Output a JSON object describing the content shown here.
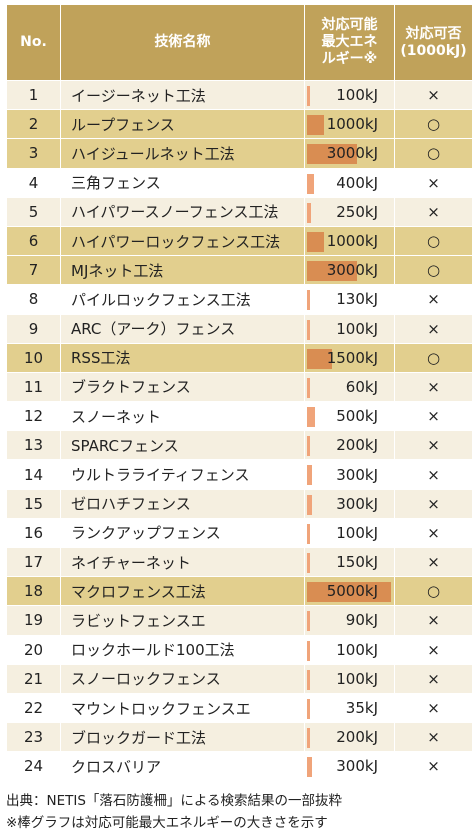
{
  "header": {
    "no": "No.",
    "name": "技術名称",
    "energy_lines": [
      "対応可能",
      "最大エネ",
      "ルギー※"
    ],
    "compat_lines": [
      "対応可否",
      "(1000kJ)"
    ]
  },
  "max_energy_kj": 5000,
  "colors": {
    "header": "#c0a25a",
    "row_alt": "#f5efe0",
    "row_highlight": "#e2cf8e",
    "bar": "#f0a47a"
  },
  "rows": [
    {
      "no": "1",
      "name": "イージーネット工法",
      "energy": "100kJ",
      "kj": 100,
      "compat": "×"
    },
    {
      "no": "2",
      "name": "ループフェンス",
      "energy": "1000kJ",
      "kj": 1000,
      "compat": "○"
    },
    {
      "no": "3",
      "name": "ハイジュールネット工法",
      "energy": "3000kJ",
      "kj": 3000,
      "compat": "○"
    },
    {
      "no": "4",
      "name": "三角フェンス",
      "energy": "400kJ",
      "kj": 400,
      "compat": "×"
    },
    {
      "no": "5",
      "name": "ハイパワースノーフェンス工法",
      "energy": "250kJ",
      "kj": 250,
      "compat": "×"
    },
    {
      "no": "6",
      "name": "ハイパワーロックフェンス工法",
      "energy": "1000kJ",
      "kj": 1000,
      "compat": "○"
    },
    {
      "no": "7",
      "name": "MJネット工法",
      "energy": "3000kJ",
      "kj": 3000,
      "compat": "○"
    },
    {
      "no": "8",
      "name": "パイルロックフェンス工法",
      "energy": "130kJ",
      "kj": 130,
      "compat": "×"
    },
    {
      "no": "9",
      "name": "ARC（アーク）フェンス",
      "energy": "100kJ",
      "kj": 100,
      "compat": "×"
    },
    {
      "no": "10",
      "name": "RSS工法",
      "energy": "1500kJ",
      "kj": 1500,
      "compat": "○"
    },
    {
      "no": "11",
      "name": "ブラクトフェンス",
      "energy": "60kJ",
      "kj": 60,
      "compat": "×"
    },
    {
      "no": "12",
      "name": "スノーネット",
      "energy": "500kJ",
      "kj": 500,
      "compat": "×"
    },
    {
      "no": "13",
      "name": "SPARCフェンス",
      "energy": "200kJ",
      "kj": 200,
      "compat": "×"
    },
    {
      "no": "14",
      "name": "ウルトラライティフェンス",
      "energy": "300kJ",
      "kj": 300,
      "compat": "×"
    },
    {
      "no": "15",
      "name": "ゼロハチフェンス",
      "energy": "300kJ",
      "kj": 300,
      "compat": "×"
    },
    {
      "no": "16",
      "name": "ランクアップフェンス",
      "energy": "100kJ",
      "kj": 100,
      "compat": "×"
    },
    {
      "no": "17",
      "name": "ネイチャーネット",
      "energy": "150kJ",
      "kj": 150,
      "compat": "×"
    },
    {
      "no": "18",
      "name": "マクロフェンス工法",
      "energy": "5000kJ",
      "kj": 5000,
      "compat": "○"
    },
    {
      "no": "19",
      "name": "ラビットフェンスエ",
      "energy": "90kJ",
      "kj": 90,
      "compat": "×"
    },
    {
      "no": "20",
      "name": "ロックホールド100工法",
      "energy": "100kJ",
      "kj": 100,
      "compat": "×"
    },
    {
      "no": "21",
      "name": "スノーロックフェンス",
      "energy": "100kJ",
      "kj": 100,
      "compat": "×"
    },
    {
      "no": "22",
      "name": "マウントロックフェンスエ",
      "energy": "35kJ",
      "kj": 35,
      "compat": "×"
    },
    {
      "no": "23",
      "name": "ブロックガード工法",
      "energy": "200kJ",
      "kj": 200,
      "compat": "×"
    },
    {
      "no": "24",
      "name": "クロスバリア",
      "energy": "300kJ",
      "kj": 300,
      "compat": "×"
    }
  ],
  "notes": {
    "source": "出典：NETIS「落石防護柵」による検索結果の一部抜粋",
    "footnote": "※棒グラフは対応可能最大エネルギーの大きさを示す"
  }
}
